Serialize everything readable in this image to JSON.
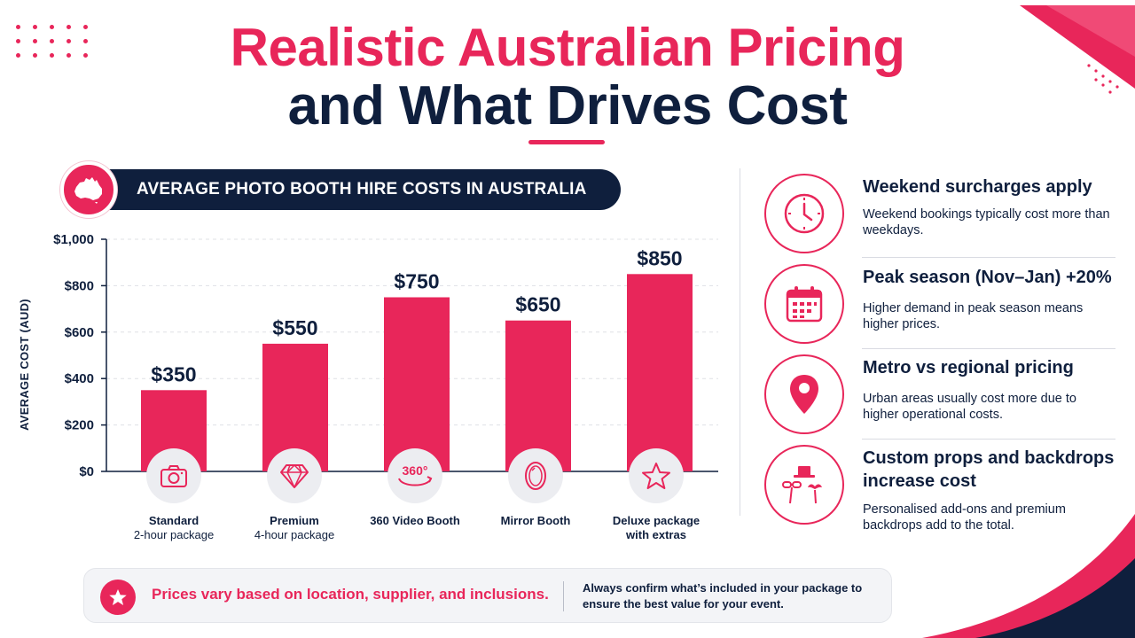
{
  "title": {
    "line1": "Realistic Australian Pricing",
    "line2": "and What Drives Cost"
  },
  "chart_header": "AVERAGE PHOTO BOOTH HIRE COSTS IN AUSTRALIA",
  "chart_data": {
    "type": "bar",
    "title": "AVERAGE PHOTO BOOTH HIRE COSTS IN AUSTRALIA",
    "xlabel": "",
    "ylabel": "AVERAGE COST (AUD)",
    "ylim": [
      0,
      1000
    ],
    "yticks": [
      0,
      200,
      400,
      600,
      800,
      1000
    ],
    "ytick_labels": [
      "$0",
      "$200",
      "$400",
      "$600",
      "$800",
      "$1,000"
    ],
    "grid": true,
    "legend": "none",
    "bar_color": "#e8265a",
    "categories": [
      "Standard 2-hour package",
      "Premium 4-hour package",
      "360 Video Booth",
      "Mirror Booth",
      "Deluxe package with extras"
    ],
    "values": [
      350,
      550,
      750,
      650,
      850
    ],
    "data_labels": [
      "$350",
      "$550",
      "$750",
      "$650",
      "$850"
    ]
  },
  "categories_display": [
    {
      "line1": "Standard",
      "line2": "2-hour package",
      "icon": "camera-icon"
    },
    {
      "line1": "Premium",
      "line2": "4-hour package",
      "icon": "diamond-icon"
    },
    {
      "line1": "360 Video Booth",
      "line2": "",
      "icon": "360-icon",
      "icon_text": "360°"
    },
    {
      "line1": "Mirror Booth",
      "line2": "",
      "icon": "mirror-icon"
    },
    {
      "line1": "Deluxe package",
      "line2": "with extras",
      "icon": "star-icon"
    }
  ],
  "factors": [
    {
      "icon": "clock-icon",
      "title": "Weekend surcharges apply",
      "desc": "Weekend bookings typically cost more than weekdays."
    },
    {
      "icon": "calendar-icon",
      "title": "Peak season (Nov–Jan) +20%",
      "desc": "Higher demand in peak season means higher prices."
    },
    {
      "icon": "location-pin-icon",
      "title": "Metro vs regional pricing",
      "desc": "Urban areas usually cost more due to higher operational costs."
    },
    {
      "icon": "props-icon",
      "title": "Custom props and backdrops increase cost",
      "desc": "Personalised add-ons and premium backdrops add to the total."
    }
  ],
  "footer": {
    "note_left": "Prices vary based on location, supplier, and inclusions.",
    "note_right": "Always confirm what’s included in your package to ensure the best value for your event."
  },
  "colors": {
    "accent": "#e8265a",
    "navy": "#0f1f3d",
    "grid": "#dfe1e6"
  }
}
